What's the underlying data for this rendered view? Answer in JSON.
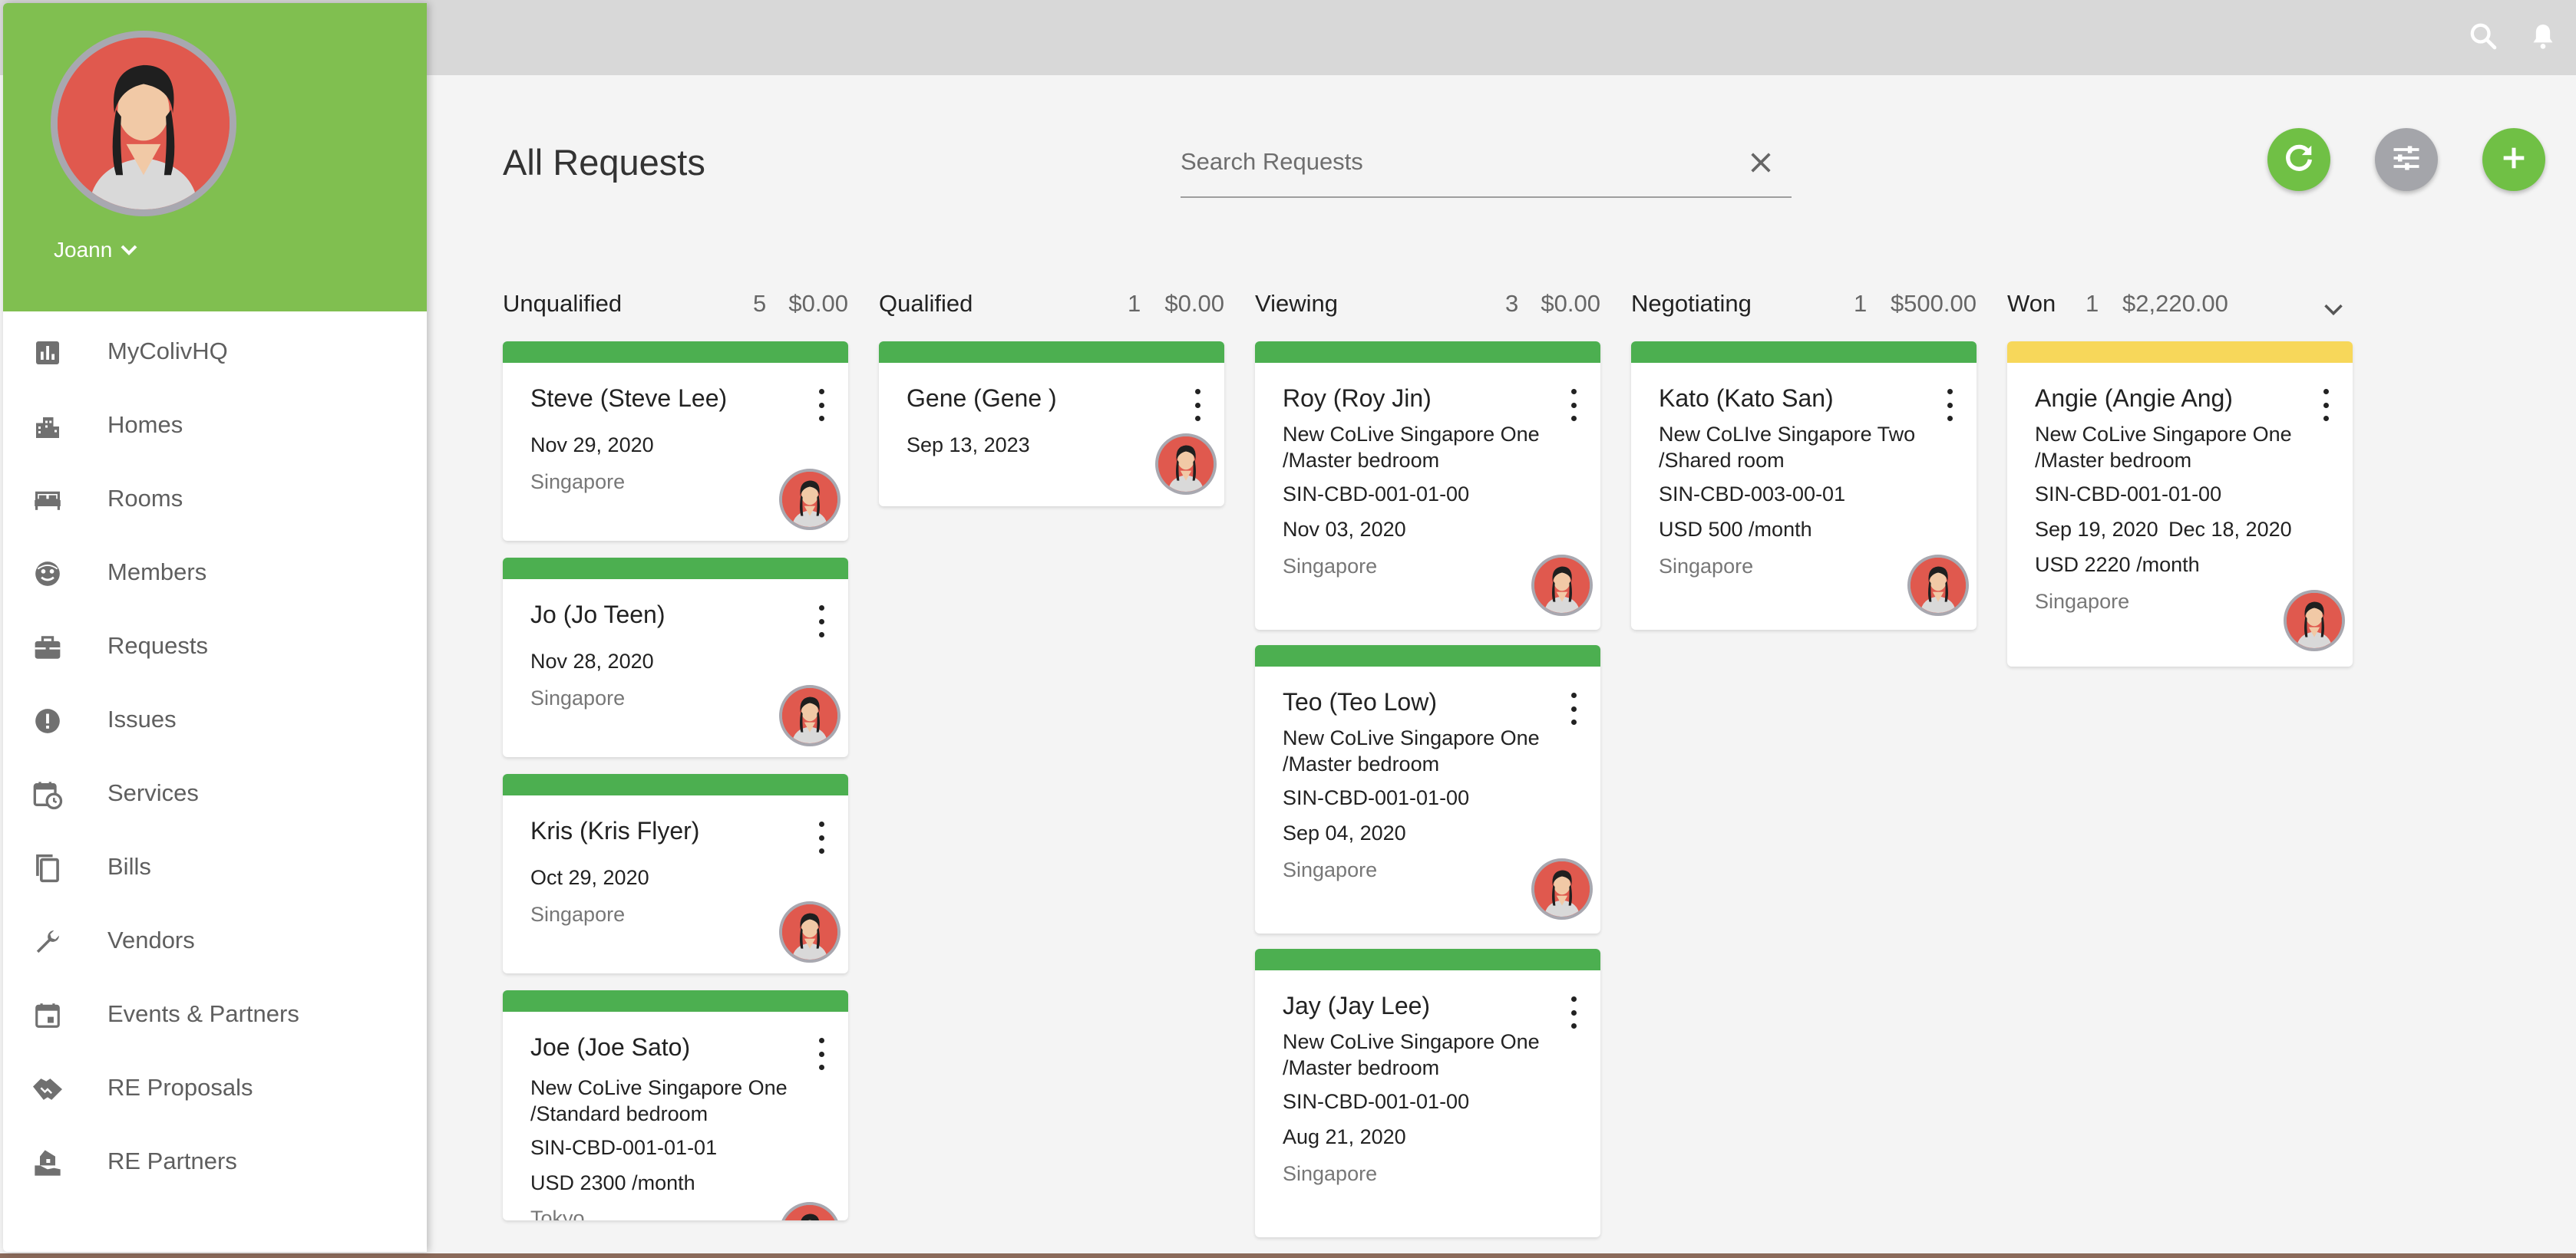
{
  "colors": {
    "topbar": "#d8d8d8",
    "sidebar_header": "#80bf50",
    "stripe_green": "#4caf50",
    "stripe_yellow": "#f7d75a",
    "fab_green": "#70c045",
    "fab_grey": "#a4a5aa",
    "avatar_bg": "#e0594e"
  },
  "topbar": {
    "icons": [
      "search-icon",
      "bell-icon"
    ]
  },
  "user": {
    "name": "Joann"
  },
  "nav": [
    {
      "label": "MyColivHQ",
      "icon": "bar-chart-icon"
    },
    {
      "label": "Homes",
      "icon": "building-icon"
    },
    {
      "label": "Rooms",
      "icon": "bed-icon"
    },
    {
      "label": "Members",
      "icon": "face-icon"
    },
    {
      "label": "Requests",
      "icon": "briefcase-icon"
    },
    {
      "label": "Issues",
      "icon": "alert-icon"
    },
    {
      "label": "Services",
      "icon": "calendar-clock-icon"
    },
    {
      "label": "Bills",
      "icon": "copy-icon"
    },
    {
      "label": "Vendors",
      "icon": "wrench-icon"
    },
    {
      "label": "Events & Partners",
      "icon": "calendar-icon"
    },
    {
      "label": "RE Proposals",
      "icon": "handshake-icon"
    },
    {
      "label": "RE Partners",
      "icon": "house-hand-icon"
    }
  ],
  "page": {
    "title": "All Requests",
    "search_placeholder": "Search Requests"
  },
  "columns": [
    {
      "title": "Unqualified",
      "count": "5",
      "amount": "$0.00",
      "cards": [
        {
          "name": "Steve (Steve Lee)",
          "lines": [
            "Nov 29, 2020"
          ],
          "location": "Singapore",
          "stripe": "green"
        },
        {
          "name": "Jo (Jo Teen)",
          "lines": [
            "Nov 28, 2020"
          ],
          "location": "Singapore",
          "stripe": "green"
        },
        {
          "name": "Kris (Kris Flyer)",
          "lines": [
            "Oct 29, 2020"
          ],
          "location": "Singapore",
          "stripe": "green"
        },
        {
          "name": "Joe (Joe Sato)",
          "lines": [
            "New CoLive Singapore One",
            "/Standard bedroom",
            "SIN-CBD-001-01-01",
            "USD 2300 /month"
          ],
          "location": "Tokyo",
          "stripe": "green"
        }
      ]
    },
    {
      "title": "Qualified",
      "count": "1",
      "amount": "$0.00",
      "cards": [
        {
          "name": "Gene (Gene )",
          "lines": [
            "Sep 13, 2023"
          ],
          "location": "",
          "stripe": "green"
        }
      ]
    },
    {
      "title": "Viewing",
      "count": "3",
      "amount": "$0.00",
      "cards": [
        {
          "name": "Roy (Roy Jin)",
          "lines": [
            "New CoLive Singapore One",
            "/Master bedroom",
            "SIN-CBD-001-01-00",
            "Nov 03, 2020"
          ],
          "location": "Singapore",
          "stripe": "green"
        },
        {
          "name": "Teo (Teo Low)",
          "lines": [
            "New CoLive Singapore One",
            "/Master bedroom",
            "SIN-CBD-001-01-00",
            "Sep 04, 2020"
          ],
          "location": "Singapore",
          "stripe": "green"
        },
        {
          "name": "Jay (Jay Lee)",
          "lines": [
            "New CoLive Singapore One",
            "/Master bedroom",
            "SIN-CBD-001-01-00",
            "Aug 21, 2020"
          ],
          "location": "Singapore",
          "stripe": "green"
        }
      ]
    },
    {
      "title": "Negotiating",
      "count": "1",
      "amount": "$500.00",
      "cards": [
        {
          "name": "Kato (Kato San)",
          "lines": [
            "New CoLIve Singapore Two",
            "/Shared room",
            "SIN-CBD-003-00-01",
            "USD 500 /month"
          ],
          "location": "Singapore",
          "stripe": "green"
        }
      ]
    },
    {
      "title": "Won",
      "count": "1",
      "amount": "$2,220.00",
      "cards": [
        {
          "name": "Angie (Angie Ang)",
          "lines": [
            "New CoLive Singapore One",
            "/Master bedroom",
            "SIN-CBD-001-01-00",
            "Sep 19, 2020",
            "USD 2220 /month"
          ],
          "date2": "Dec 18, 2020",
          "location": "Singapore",
          "stripe": "yellow"
        }
      ]
    }
  ]
}
